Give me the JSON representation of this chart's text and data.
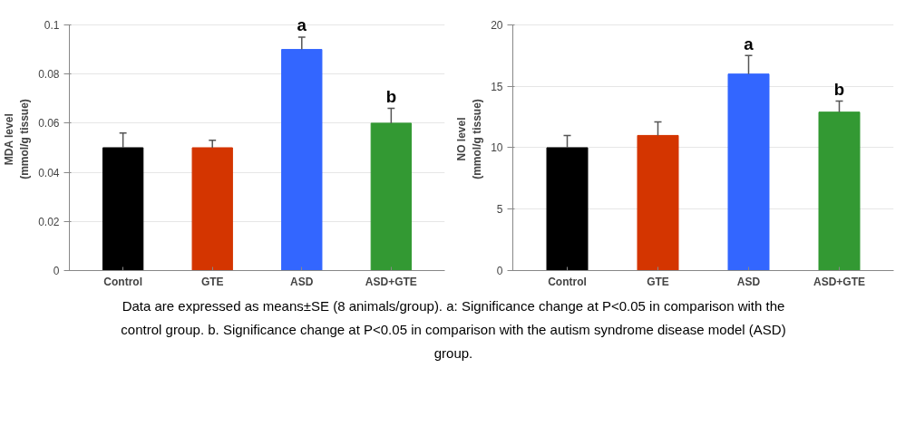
{
  "chart_data": [
    {
      "type": "bar",
      "ylabel": "MDA level\n(mmol/g tissue)",
      "categories": [
        "Control",
        "GTE",
        "ASD",
        "ASD+GTE"
      ],
      "values": [
        0.05,
        0.05,
        0.09,
        0.06
      ],
      "colors": [
        "#000000",
        "#d43500",
        "#3366ff",
        "#339933"
      ],
      "errors": [
        [
          0.05,
          0.056
        ],
        [
          0.05,
          0.053
        ],
        [
          0.09,
          0.095
        ],
        [
          0.06,
          0.066
        ]
      ],
      "ylim": [
        0,
        0.1
      ],
      "yticks": [
        0,
        0.02,
        0.04,
        0.06,
        0.08,
        0.1
      ],
      "grid": "y",
      "annotations": [
        {
          "text": "a",
          "x": "ASD",
          "y": 0.095
        },
        {
          "text": "b",
          "x": "ASD+GTE",
          "y": 0.066
        }
      ]
    },
    {
      "type": "bar",
      "ylabel": "NO level\n(mmol/g tissue)",
      "categories": [
        "Control",
        "GTE",
        "ASD",
        "ASD+GTE"
      ],
      "values": [
        10,
        11,
        16,
        12.9
      ],
      "colors": [
        "#000000",
        "#d43500",
        "#3366ff",
        "#339933"
      ],
      "errors": [
        [
          10,
          11
        ],
        [
          11,
          12.1
        ],
        [
          16,
          17.5
        ],
        [
          12.9,
          13.8
        ]
      ],
      "ylim": [
        0,
        20
      ],
      "yticks": [
        0,
        5,
        10,
        15,
        20
      ],
      "grid": "y",
      "annotations": [
        {
          "text": "a",
          "x": "ASD",
          "y": 17.5
        },
        {
          "text": "b",
          "x": "ASD+GTE",
          "y": 13.8
        }
      ]
    },
    {
      "type": "other",
      "annotations": [
        "Data are expressed as means±SE (8 animals/group). a: Significance change at P<0.05 in comparison with the control group. b. Significance change at P<0.05 in comparison with the autism syndrome disease model (ASD) group."
      ]
    }
  ]
}
